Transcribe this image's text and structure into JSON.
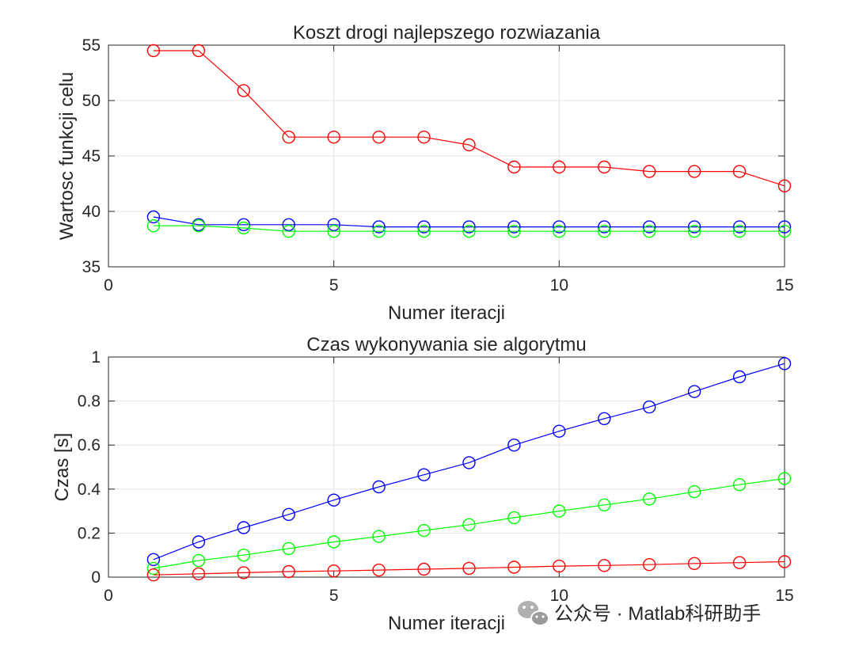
{
  "chart_data": [
    {
      "type": "line",
      "title": "Koszt drogi najlepszego rozwiazania",
      "xlabel": "Numer iteracji",
      "ylabel": "Wartosc funkcji celu",
      "xlim": [
        0,
        15
      ],
      "ylim": [
        35,
        55
      ],
      "xticks": [
        0,
        5,
        10,
        15
      ],
      "yticks": [
        35,
        40,
        45,
        50,
        55
      ],
      "grid": true,
      "marker": "circle",
      "x": [
        1,
        2,
        3,
        4,
        5,
        6,
        7,
        8,
        9,
        10,
        11,
        12,
        13,
        14,
        15
      ],
      "series": [
        {
          "color": "#ff0000",
          "values": [
            54.5,
            54.5,
            50.9,
            46.7,
            46.7,
            46.7,
            46.7,
            46.0,
            44.0,
            44.0,
            44.0,
            43.6,
            43.6,
            43.6,
            42.3
          ]
        },
        {
          "color": "#0000ff",
          "values": [
            39.5,
            38.8,
            38.8,
            38.8,
            38.8,
            38.6,
            38.6,
            38.6,
            38.6,
            38.6,
            38.6,
            38.6,
            38.6,
            38.6,
            38.6
          ]
        },
        {
          "color": "#00ff00",
          "values": [
            38.7,
            38.7,
            38.5,
            38.2,
            38.2,
            38.2,
            38.2,
            38.2,
            38.2,
            38.2,
            38.2,
            38.2,
            38.2,
            38.2,
            38.2
          ]
        }
      ]
    },
    {
      "type": "line",
      "title": "Czas wykonywania sie algorytmu",
      "xlabel": "Numer iteracji",
      "ylabel": "Czas [s]",
      "xlim": [
        0,
        15
      ],
      "ylim": [
        0,
        1
      ],
      "xticks": [
        0,
        5,
        10,
        15
      ],
      "yticks": [
        0,
        0.2,
        0.4,
        0.6,
        0.8,
        1
      ],
      "grid": true,
      "marker": "circle",
      "x": [
        1,
        2,
        3,
        4,
        5,
        6,
        7,
        8,
        9,
        10,
        11,
        12,
        13,
        14,
        15
      ],
      "series": [
        {
          "color": "#0000ff",
          "values": [
            0.08,
            0.16,
            0.225,
            0.285,
            0.35,
            0.41,
            0.465,
            0.52,
            0.6,
            0.663,
            0.72,
            0.773,
            0.843,
            0.91,
            0.97
          ]
        },
        {
          "color": "#00ff00",
          "values": [
            0.04,
            0.075,
            0.1,
            0.13,
            0.16,
            0.185,
            0.212,
            0.238,
            0.27,
            0.3,
            0.328,
            0.355,
            0.388,
            0.42,
            0.448
          ]
        },
        {
          "color": "#ff0000",
          "values": [
            0.01,
            0.015,
            0.02,
            0.025,
            0.028,
            0.032,
            0.036,
            0.04,
            0.045,
            0.05,
            0.053,
            0.057,
            0.062,
            0.066,
            0.07
          ]
        }
      ]
    }
  ],
  "watermark": {
    "icon": "wechat-icon",
    "text": "公众号 · Matlab科研助手"
  }
}
